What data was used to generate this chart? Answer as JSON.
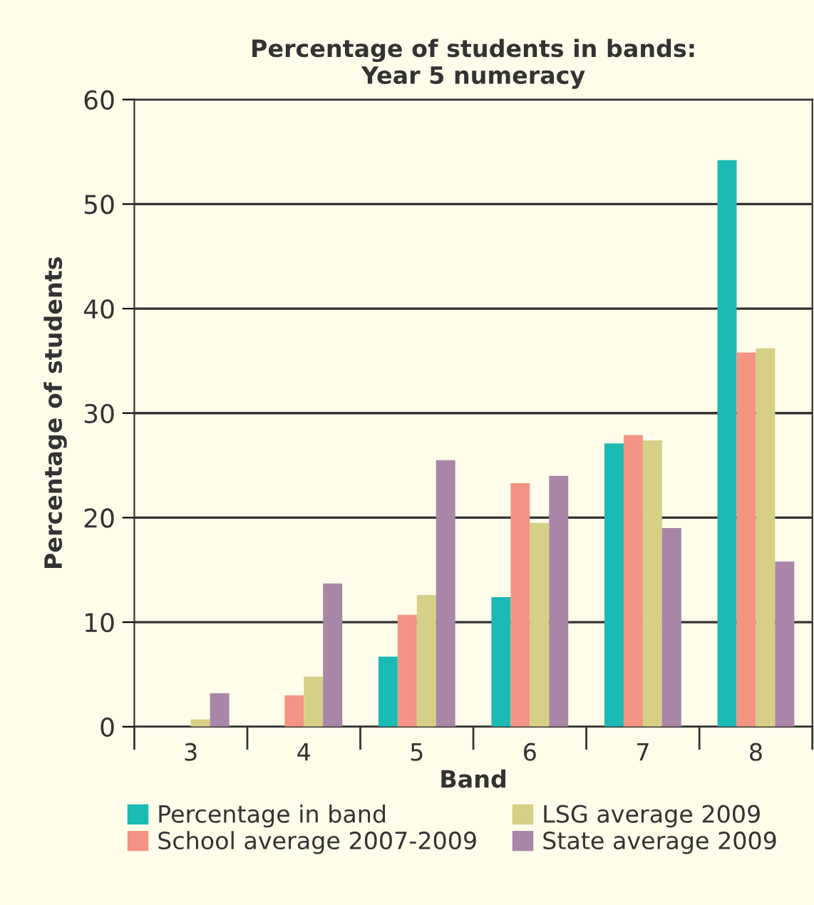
{
  "chart_data": {
    "type": "bar",
    "title": "Percentage of students in bands:\nYear 5 numeracy",
    "xlabel": "Band",
    "ylabel": "Percentage of students",
    "categories": [
      "3",
      "4",
      "5",
      "6",
      "7",
      "8"
    ],
    "series": [
      {
        "name": "Percentage in band",
        "color": "#1bbab5",
        "values": [
          0,
          0,
          6.7,
          12.4,
          27.1,
          54.2
        ]
      },
      {
        "name": "School average 2007-2009",
        "color": "#f39484",
        "values": [
          0,
          3.0,
          10.7,
          23.3,
          27.9,
          35.8
        ]
      },
      {
        "name": "LSG average 2009",
        "color": "#d6cf86",
        "values": [
          0.7,
          4.8,
          12.6,
          19.5,
          27.4,
          36.2
        ]
      },
      {
        "name": "State average 2009",
        "color": "#a886a8",
        "values": [
          3.2,
          13.7,
          25.5,
          24.0,
          19.0,
          15.8
        ]
      }
    ],
    "ylim": [
      0,
      60
    ],
    "yticks": [
      0,
      10,
      20,
      30,
      40,
      50,
      60
    ],
    "grid": "y",
    "legend": "bottom"
  }
}
